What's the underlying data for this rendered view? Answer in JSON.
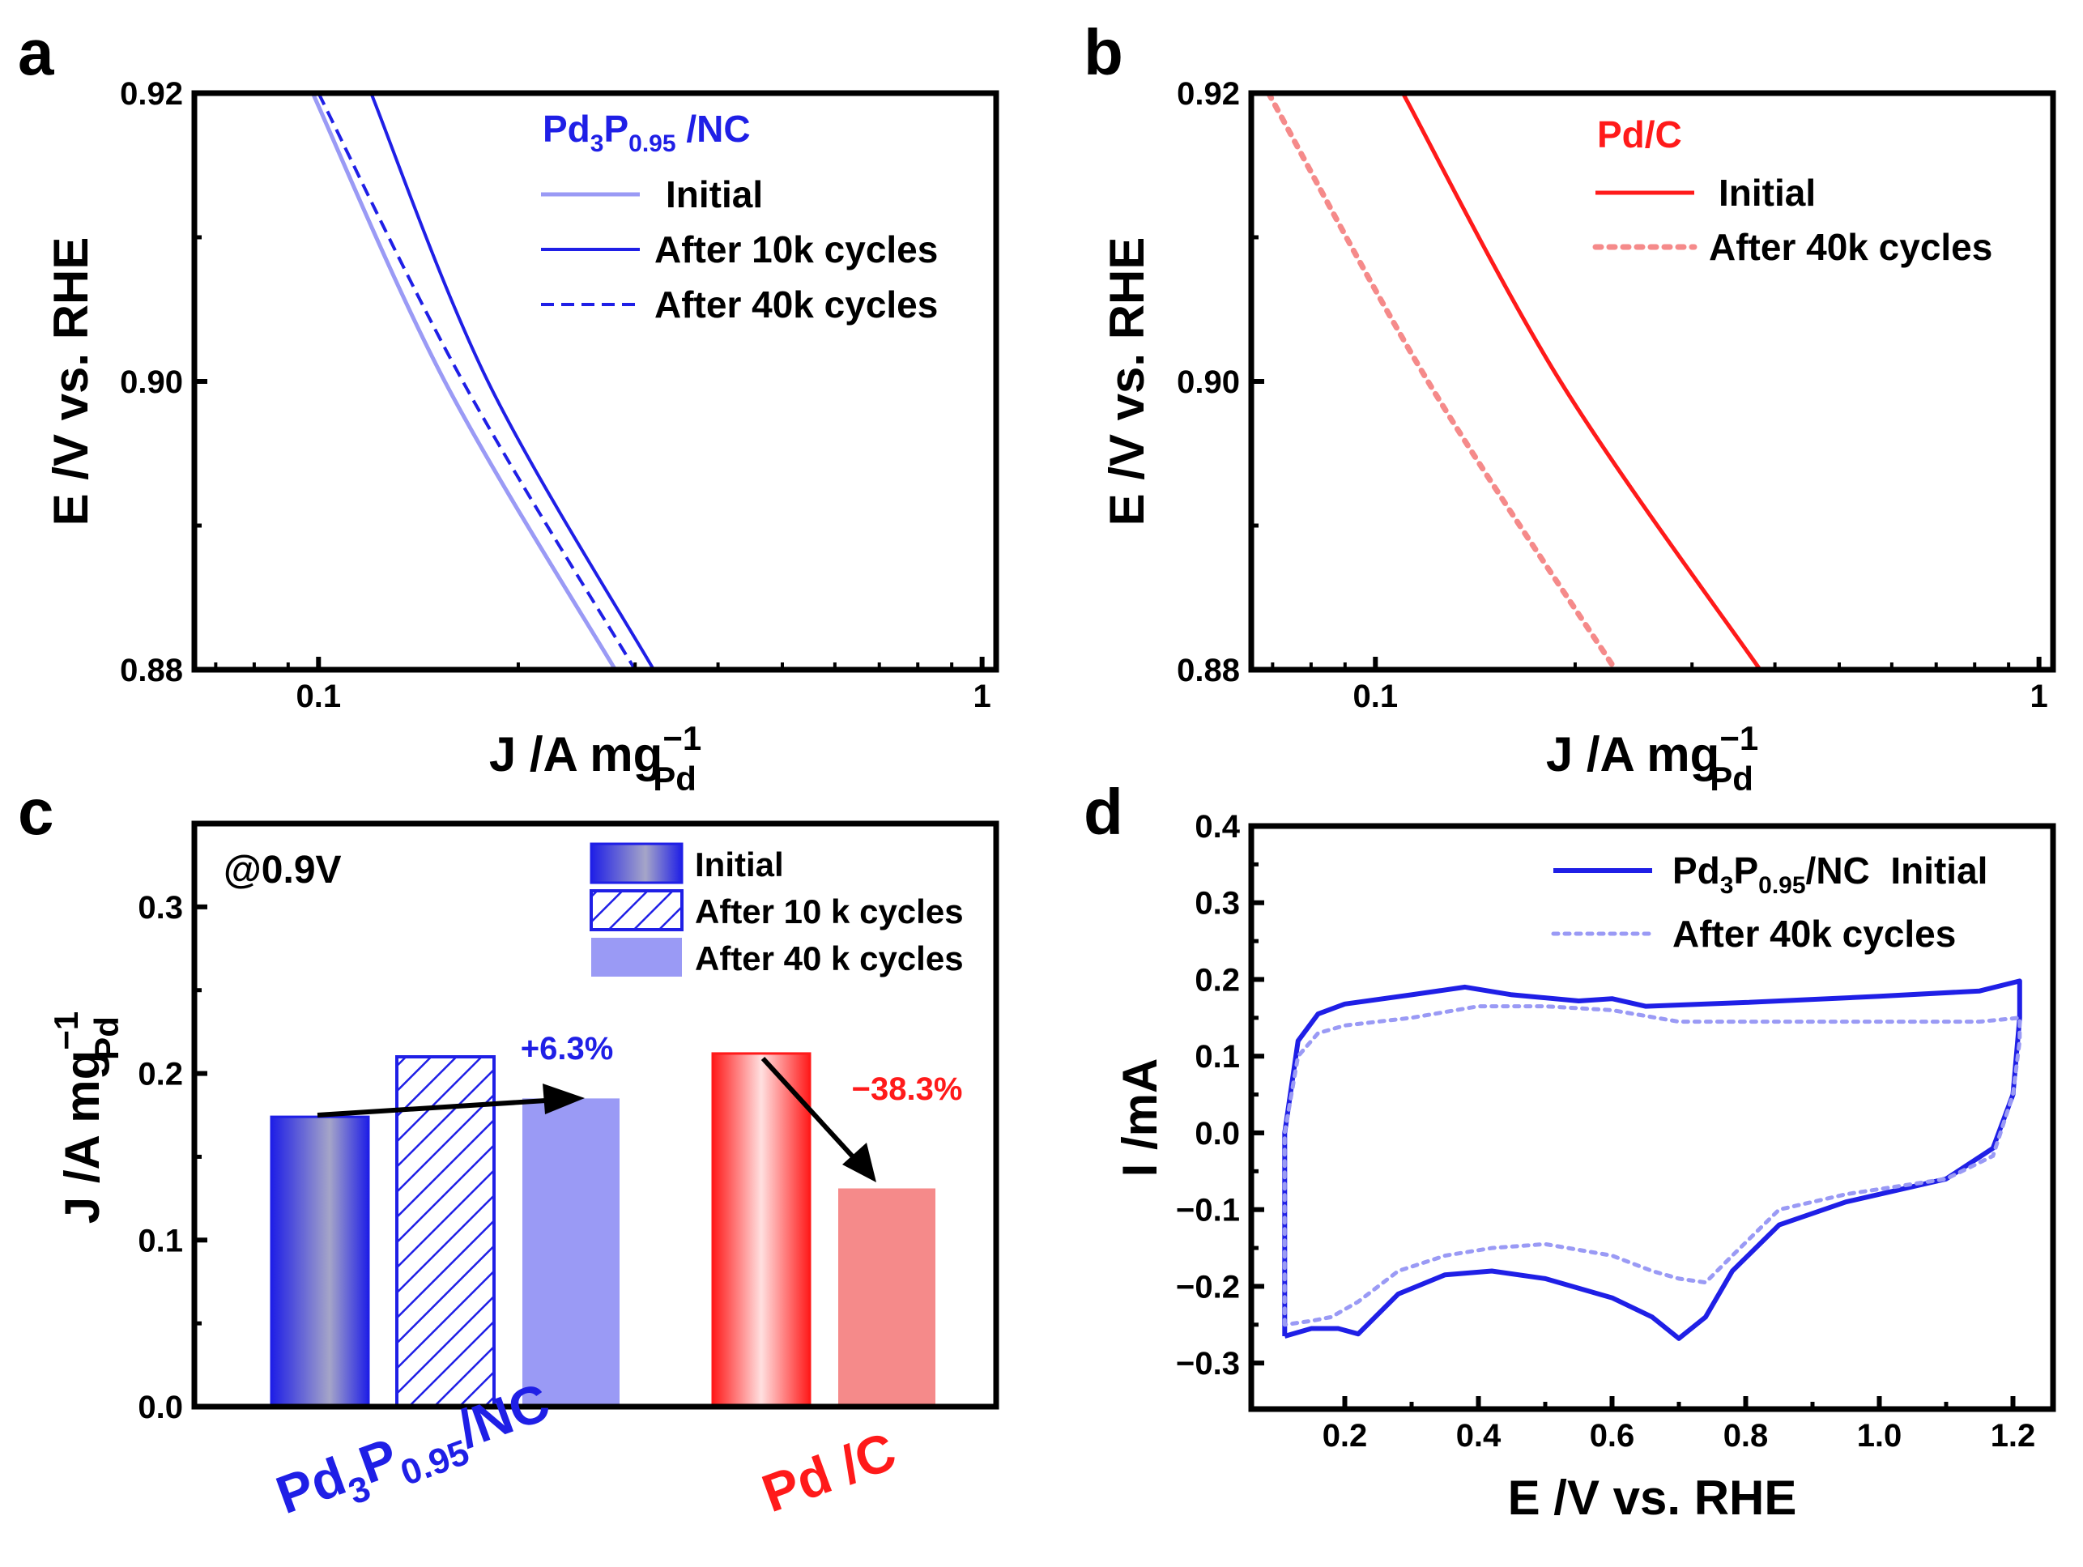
{
  "colors": {
    "blue": "#1f1fe6",
    "light_blue": "#9a9af5",
    "red": "#ff1a1a",
    "light_red": "#f58a8a",
    "black": "#000000"
  },
  "chart_data": [
    {
      "panel": "a",
      "type": "line",
      "xscale": "log",
      "xlim": [
        0.065,
        1.05
      ],
      "ylim": [
        0.88,
        0.92
      ],
      "xticks": [
        0.1,
        1
      ],
      "xtick_labels": [
        "0.1",
        "1"
      ],
      "yticks": [
        0.88,
        0.9,
        0.92
      ],
      "ytick_labels": [
        "0.88",
        "0.90",
        "0.92"
      ],
      "xlabel": "J /A mg",
      "xlabel_sup": "−1",
      "xlabel_sub": "Pd",
      "ylabel": "E /V vs. RHE",
      "legend_title": {
        "base": "Pd",
        "s1": "3",
        "mid": "P",
        "s2": "0.95",
        "tail": " /NC"
      },
      "series": [
        {
          "name": "Initial",
          "color": "light_blue",
          "dash": "solid",
          "points": [
            [
              0.098,
              0.92
            ],
            [
              0.155,
              0.9
            ],
            [
              0.28,
              0.88
            ]
          ]
        },
        {
          "name": "After 10k cycles",
          "color": "blue",
          "dash": "solid",
          "points": [
            [
              0.12,
              0.92
            ],
            [
              0.18,
              0.9
            ],
            [
              0.32,
              0.88
            ]
          ]
        },
        {
          "name": "After 40k cycles",
          "color": "blue",
          "dash": "dashed",
          "points": [
            [
              0.1,
              0.92
            ],
            [
              0.165,
              0.9
            ],
            [
              0.3,
              0.88
            ]
          ]
        }
      ]
    },
    {
      "panel": "b",
      "type": "line",
      "xscale": "log",
      "xlim": [
        0.065,
        1.05
      ],
      "ylim": [
        0.88,
        0.92
      ],
      "xticks": [
        0.1,
        1
      ],
      "xtick_labels": [
        "0.1",
        "1"
      ],
      "yticks": [
        0.88,
        0.9,
        0.92
      ],
      "ytick_labels": [
        "0.88",
        "0.90",
        "0.92"
      ],
      "xlabel": "J /A mg",
      "xlabel_sup": "−1",
      "xlabel_sub": "Pd",
      "ylabel": "E /V vs. RHE",
      "legend_title": "Pd/C",
      "series": [
        {
          "name": "Initial",
          "color": "red",
          "dash": "solid",
          "points": [
            [
              0.11,
              0.92
            ],
            [
              0.19,
              0.9
            ],
            [
              0.38,
              0.88
            ]
          ]
        },
        {
          "name": "After 40k cycles",
          "color": "light_red",
          "dash": "dotted",
          "points": [
            [
              0.069,
              0.92
            ],
            [
              0.12,
              0.9
            ],
            [
              0.23,
              0.88
            ]
          ]
        }
      ]
    },
    {
      "panel": "c",
      "type": "bar",
      "ylim": [
        0,
        0.35
      ],
      "yticks": [
        0,
        0.1,
        0.2,
        0.3
      ],
      "ytick_labels": [
        "0.0",
        "0.1",
        "0.2",
        "0.3"
      ],
      "ylabel": "J /A mg",
      "ylabel_sup": "−1",
      "ylabel_sub": "Pd",
      "annotation": "@0.9V",
      "legend": [
        "Initial",
        "After 10 k cycles",
        "After 40 k cycles"
      ],
      "groups": [
        {
          "label": {
            "base": "Pd",
            "s1": "3",
            "mid": "P",
            "s2": "0.95",
            "tail": "/NC"
          },
          "color": "blue",
          "bars": [
            {
              "name": "Initial",
              "value": 0.174
            },
            {
              "name": "After 10 k cycles",
              "value": 0.21
            },
            {
              "name": "After 40 k cycles",
              "value": 0.185
            }
          ],
          "change": "+6.3%"
        },
        {
          "label": "Pd /C",
          "color": "red",
          "bars": [
            {
              "name": "Initial",
              "value": 0.212
            },
            {
              "name": "After 40 k cycles",
              "value": 0.131
            }
          ],
          "change": "−38.3%"
        }
      ]
    },
    {
      "panel": "d",
      "type": "line",
      "xlim": [
        0.06,
        1.26
      ],
      "ylim": [
        -0.36,
        0.4
      ],
      "xticks": [
        0.2,
        0.4,
        0.6,
        0.8,
        1.0,
        1.2
      ],
      "xtick_labels": [
        "0.2",
        "0.4",
        "0.6",
        "0.8",
        "1.0",
        "1.2"
      ],
      "yticks": [
        -0.3,
        -0.2,
        -0.1,
        0.0,
        0.1,
        0.2,
        0.3,
        0.4
      ],
      "ytick_labels": [
        "−0.3",
        "−0.2",
        "−0.1",
        "0.0",
        "0.1",
        "0.2",
        "0.3",
        "0.4"
      ],
      "xlabel": "E /V vs. RHE",
      "ylabel": "I /mA",
      "series": [
        {
          "name": {
            "base": "Pd",
            "s1": "3",
            "mid": "P",
            "s2": "0.95",
            "tail": "/NC  Initial"
          },
          "color": "blue",
          "dash": "solid",
          "points": [
            [
              0.11,
              -0.265
            ],
            [
              0.11,
              -0.15
            ],
            [
              0.11,
              0.0
            ],
            [
              0.13,
              0.12
            ],
            [
              0.16,
              0.155
            ],
            [
              0.2,
              0.168
            ],
            [
              0.3,
              0.18
            ],
            [
              0.38,
              0.19
            ],
            [
              0.45,
              0.18
            ],
            [
              0.55,
              0.172
            ],
            [
              0.6,
              0.175
            ],
            [
              0.65,
              0.165
            ],
            [
              0.8,
              0.17
            ],
            [
              1.0,
              0.178
            ],
            [
              1.15,
              0.185
            ],
            [
              1.21,
              0.198
            ],
            [
              1.21,
              0.15
            ],
            [
              1.2,
              0.05
            ],
            [
              1.17,
              -0.02
            ],
            [
              1.1,
              -0.06
            ],
            [
              0.95,
              -0.09
            ],
            [
              0.85,
              -0.12
            ],
            [
              0.78,
              -0.18
            ],
            [
              0.74,
              -0.24
            ],
            [
              0.7,
              -0.268
            ],
            [
              0.66,
              -0.24
            ],
            [
              0.6,
              -0.215
            ],
            [
              0.5,
              -0.19
            ],
            [
              0.42,
              -0.18
            ],
            [
              0.35,
              -0.185
            ],
            [
              0.28,
              -0.21
            ],
            [
              0.22,
              -0.262
            ],
            [
              0.19,
              -0.255
            ],
            [
              0.15,
              -0.255
            ],
            [
              0.11,
              -0.265
            ]
          ]
        },
        {
          "name": "After 40k cycles",
          "color": "light_blue",
          "dash": "dotted",
          "points": [
            [
              0.11,
              -0.25
            ],
            [
              0.11,
              -0.15
            ],
            [
              0.11,
              0.0
            ],
            [
              0.13,
              0.1
            ],
            [
              0.16,
              0.13
            ],
            [
              0.2,
              0.14
            ],
            [
              0.3,
              0.15
            ],
            [
              0.4,
              0.165
            ],
            [
              0.5,
              0.165
            ],
            [
              0.6,
              0.16
            ],
            [
              0.7,
              0.145
            ],
            [
              0.8,
              0.145
            ],
            [
              1.0,
              0.145
            ],
            [
              1.15,
              0.145
            ],
            [
              1.21,
              0.15
            ],
            [
              1.21,
              0.12
            ],
            [
              1.2,
              0.05
            ],
            [
              1.17,
              -0.03
            ],
            [
              1.1,
              -0.06
            ],
            [
              0.95,
              -0.08
            ],
            [
              0.85,
              -0.1
            ],
            [
              0.78,
              -0.16
            ],
            [
              0.74,
              -0.195
            ],
            [
              0.7,
              -0.19
            ],
            [
              0.66,
              -0.18
            ],
            [
              0.6,
              -0.16
            ],
            [
              0.5,
              -0.145
            ],
            [
              0.42,
              -0.15
            ],
            [
              0.35,
              -0.16
            ],
            [
              0.28,
              -0.18
            ],
            [
              0.22,
              -0.22
            ],
            [
              0.18,
              -0.24
            ],
            [
              0.15,
              -0.245
            ],
            [
              0.11,
              -0.25
            ]
          ]
        }
      ]
    }
  ]
}
